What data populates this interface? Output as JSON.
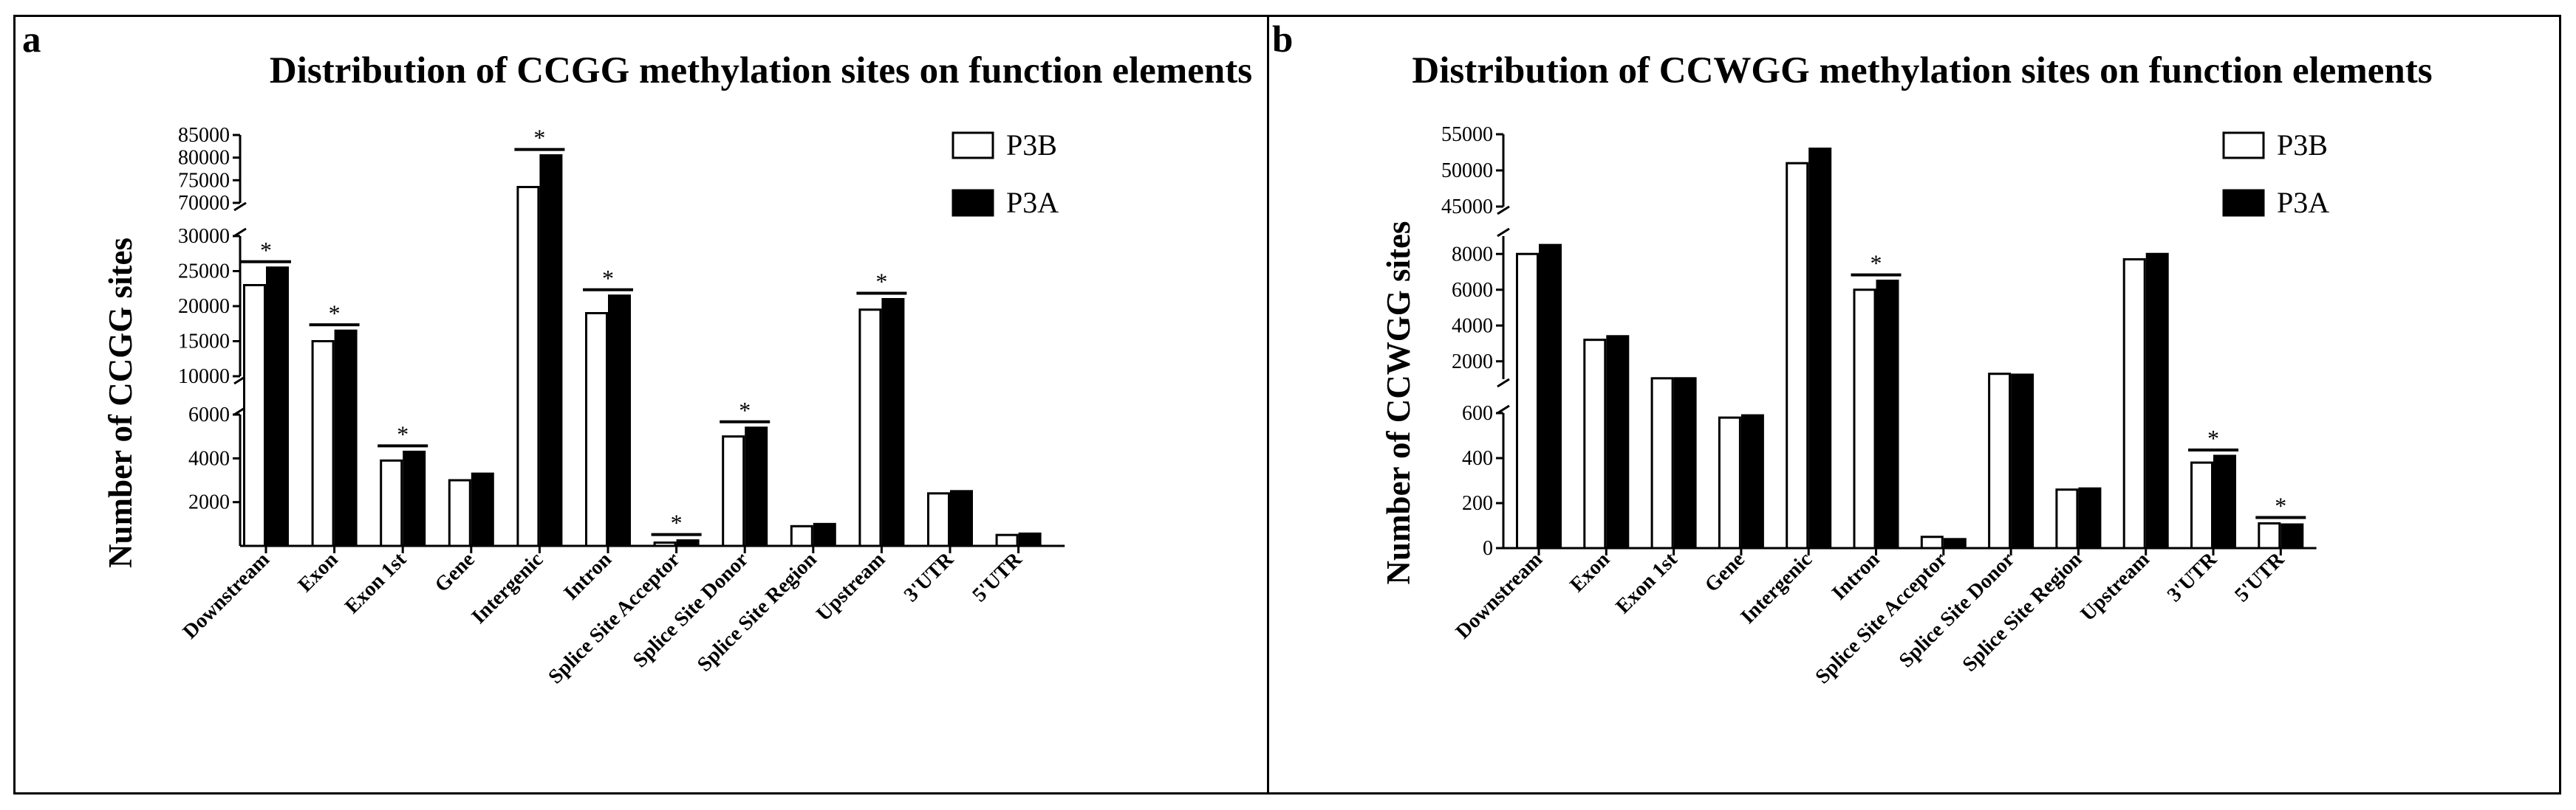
{
  "chart_data": [
    {
      "type": "bar",
      "panel_label": "a",
      "title": "Distribution of CCGG methylation sites on function elements",
      "xlabel": "",
      "ylabel": "Number of CCGG sites",
      "categories": [
        "Downstream",
        "Exon",
        "Exon 1st",
        "Gene",
        "Intergenic",
        "Intron",
        "Splice Site Acceptor",
        "Splice Site Donor",
        "Splice Site Region",
        "Upstream",
        "3'UTR",
        "5'UTR"
      ],
      "series": [
        {
          "name": "P3B",
          "fill": "#ffffff",
          "values": [
            23000,
            15000,
            3900,
            3000,
            73500,
            19000,
            150,
            5000,
            900,
            19500,
            2400,
            500
          ]
        },
        {
          "name": "P3A",
          "fill": "#000000",
          "values": [
            25500,
            16500,
            4300,
            3300,
            80500,
            21500,
            250,
            5400,
            1000,
            21000,
            2500,
            560
          ]
        }
      ],
      "y_segments": [
        {
          "range": [
            0,
            6000
          ],
          "ticks": [
            "2000",
            "4000",
            "6000"
          ]
        },
        {
          "range": [
            10000,
            30000
          ],
          "ticks": [
            "10000",
            "15000",
            "20000",
            "25000",
            "30000"
          ]
        },
        {
          "range": [
            70000,
            85000
          ],
          "ticks": [
            "70000",
            "75000",
            "80000",
            "85000"
          ]
        }
      ],
      "significance": [
        {
          "category": "Downstream",
          "label": "*"
        },
        {
          "category": "Exon",
          "label": "*"
        },
        {
          "category": "Exon 1st",
          "label": "*"
        },
        {
          "category": "Intergenic",
          "label": "*"
        },
        {
          "category": "Intron",
          "label": "*"
        },
        {
          "category": "Splice Site Acceptor",
          "label": "*"
        },
        {
          "category": "Splice Site Donor",
          "label": "*"
        },
        {
          "category": "Upstream",
          "label": "*"
        }
      ],
      "legend_position": "top-right"
    },
    {
      "type": "bar",
      "panel_label": "b",
      "title": "Distribution of CCWGG methylation sites on function elements",
      "xlabel": "",
      "ylabel": "Number of CCWGG sites",
      "categories": [
        "Downstream",
        "Exon",
        "Exon 1st",
        "Gene",
        "Intergenic",
        "Intron",
        "Splice Site Acceptor",
        "Splice Site Donor",
        "Splice Site Region",
        "Upstream",
        "3'UTR",
        "5'UTR"
      ],
      "series": [
        {
          "name": "P3B",
          "fill": "#ffffff",
          "values": [
            8000,
            3200,
            1050,
            580,
            51000,
            6000,
            50,
            1300,
            260,
            7700,
            380,
            110
          ]
        },
        {
          "name": "P3A",
          "fill": "#000000",
          "values": [
            8500,
            3400,
            1050,
            590,
            53000,
            6500,
            40,
            1250,
            265,
            8000,
            410,
            105
          ]
        }
      ],
      "y_segments": [
        {
          "range": [
            0,
            600
          ],
          "ticks": [
            "0",
            "200",
            "400",
            "600"
          ]
        },
        {
          "range": [
            1000,
            9000
          ],
          "ticks": [
            "2000",
            "4000",
            "6000",
            "8000"
          ]
        },
        {
          "range": [
            45000,
            55000
          ],
          "ticks": [
            "45000",
            "50000",
            "55000"
          ]
        }
      ],
      "significance": [
        {
          "category": "Intron",
          "label": "*"
        },
        {
          "category": "3'UTR",
          "label": "*"
        },
        {
          "category": "5'UTR",
          "label": "*"
        }
      ],
      "legend_position": "top-right"
    }
  ]
}
